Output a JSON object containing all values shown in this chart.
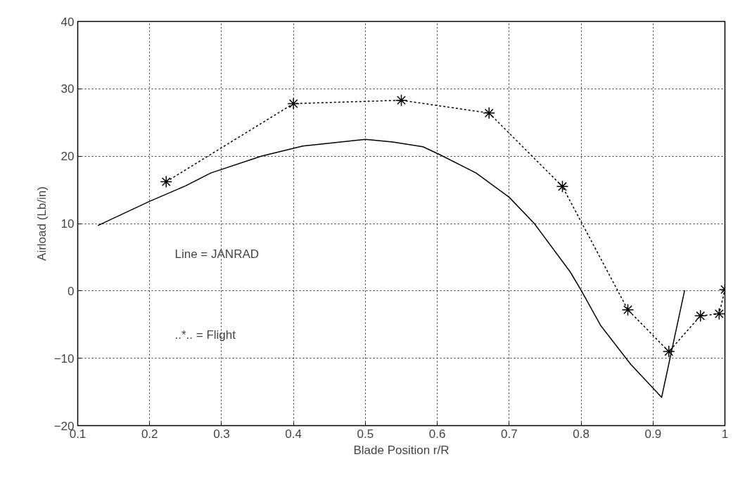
{
  "chart_data": {
    "type": "line",
    "xlabel": "Blade Position r/R",
    "ylabel": "Airload (Lb/in)",
    "xlim": [
      0.1,
      1.0
    ],
    "xticks": [
      0.1,
      0.2,
      0.3,
      0.4,
      0.5,
      0.6,
      0.7,
      0.8,
      0.9,
      1
    ],
    "ylim": [
      -20,
      40
    ],
    "yticks": [
      -20,
      -10,
      0,
      10,
      20,
      30,
      40
    ],
    "grid": true,
    "annotations": [
      "Line = JANRAD",
      "..*.. = Flight"
    ],
    "series": [
      {
        "color": "#000000",
        "line_style": "solid",
        "marker": "none",
        "x": [
          0.128,
          0.2,
          0.25,
          0.285,
          0.355,
          0.413,
          0.5,
          0.538,
          0.58,
          0.604,
          0.654,
          0.7,
          0.735,
          0.785,
          0.8,
          0.827,
          0.869,
          0.912,
          0.944
        ],
        "values": [
          9.7,
          13.3,
          15.6,
          17.5,
          20,
          21.5,
          22.5,
          22.1,
          21.4,
          20.2,
          17.5,
          13.9,
          10,
          2.8,
          0.1,
          -5.1,
          -10.9,
          -15.8,
          0.1
        ]
      },
      {
        "color": "#000000",
        "line_style": "dotted",
        "marker": "cross",
        "x": [
          0.223,
          0.4,
          0.55,
          0.672,
          0.774,
          0.865,
          0.922,
          0.966,
          0.992,
          1.0
        ],
        "values": [
          16.2,
          27.8,
          28.3,
          26.4,
          15.5,
          -2.8,
          -9.0,
          -3.7,
          -3.4,
          0.2
        ]
      }
    ]
  }
}
